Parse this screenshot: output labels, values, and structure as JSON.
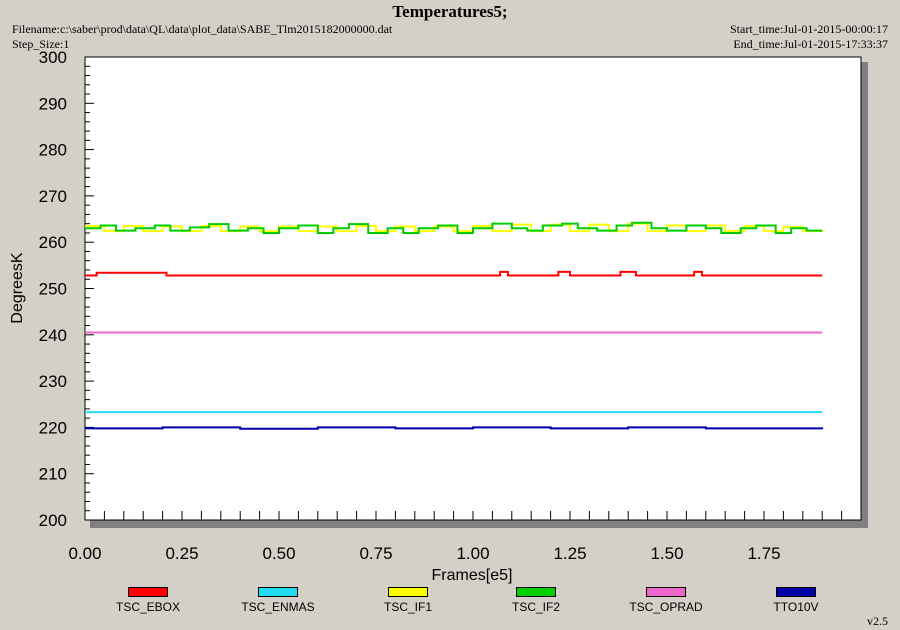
{
  "header": {
    "title": "Temperatures5;",
    "filename": "Filename:c:\\saber\\prod\\data\\QL\\data\\plot_data\\SABE_Tlm2015182000000.dat",
    "step_size": "Step_Size:1",
    "start_time": "Start_time:Jul-01-2015-00:00:17",
    "end_time": "End_time:Jul-01-2015-17:33:37"
  },
  "footer": {
    "version": "v2.5"
  },
  "chart_data": {
    "type": "line",
    "title": "Temperatures5;",
    "xlabel": "Frames[e5]",
    "ylabel": "DegreesK",
    "xlim": [
      0,
      2.0
    ],
    "ylim": [
      200,
      300
    ],
    "xticks": [
      "0.00",
      "0.25",
      "0.50",
      "0.75",
      "1.00",
      "1.25",
      "1.50",
      "1.75"
    ],
    "yticks": [
      "200",
      "210",
      "220",
      "230",
      "240",
      "250",
      "260",
      "270",
      "280",
      "290",
      "300"
    ],
    "grid": false,
    "legend_position": "bottom",
    "series": [
      {
        "name": "TSC_EBOX",
        "color": "#ff0000",
        "x": [
          0.0,
          0.03,
          0.19,
          0.21,
          1.07,
          1.09,
          1.22,
          1.25,
          1.38,
          1.42,
          1.57,
          1.59,
          1.9
        ],
        "y": [
          252.8,
          253.4,
          253.4,
          252.8,
          253.6,
          252.8,
          253.6,
          252.8,
          253.6,
          252.8,
          253.6,
          252.8,
          252.8
        ]
      },
      {
        "name": "TSC_ENMAS",
        "color": "#22ddf2",
        "x": [
          0.0,
          1.9
        ],
        "y": [
          223.3,
          223.3
        ]
      },
      {
        "name": "TSC_IF1",
        "color": "#ffff00",
        "x": [
          0.0,
          0.05,
          0.1,
          0.15,
          0.2,
          0.25,
          0.3,
          0.35,
          0.4,
          0.45,
          0.5,
          0.55,
          0.6,
          0.65,
          0.7,
          0.75,
          0.8,
          0.85,
          0.9,
          0.95,
          1.0,
          1.05,
          1.1,
          1.15,
          1.2,
          1.25,
          1.3,
          1.35,
          1.4,
          1.45,
          1.5,
          1.55,
          1.6,
          1.65,
          1.7,
          1.75,
          1.8,
          1.85,
          1.9
        ],
        "y": [
          263.5,
          262.4,
          263.5,
          262.4,
          263.4,
          262.4,
          263.5,
          262.4,
          263.4,
          262.4,
          263.4,
          262.4,
          263.4,
          262.4,
          263.5,
          262.4,
          263.4,
          262.4,
          263.4,
          262.4,
          263.5,
          262.4,
          263.8,
          262.4,
          263.8,
          262.4,
          263.8,
          262.4,
          264.0,
          262.4,
          263.6,
          262.4,
          263.6,
          262.4,
          263.5,
          262.4,
          263.3,
          262.4,
          262.6
        ]
      },
      {
        "name": "TSC_IF2",
        "color": "#00cc00",
        "x": [
          0.0,
          0.04,
          0.08,
          0.13,
          0.18,
          0.22,
          0.27,
          0.32,
          0.37,
          0.42,
          0.46,
          0.5,
          0.55,
          0.6,
          0.64,
          0.68,
          0.73,
          0.78,
          0.82,
          0.86,
          0.91,
          0.96,
          1.0,
          1.05,
          1.1,
          1.14,
          1.18,
          1.23,
          1.27,
          1.32,
          1.37,
          1.41,
          1.46,
          1.5,
          1.55,
          1.6,
          1.64,
          1.69,
          1.73,
          1.78,
          1.82,
          1.86,
          1.9
        ],
        "y": [
          263.0,
          263.6,
          262.5,
          263.0,
          263.6,
          262.5,
          263.2,
          263.9,
          262.5,
          263.0,
          262.0,
          263.0,
          263.6,
          262.0,
          263.0,
          263.9,
          262.0,
          263.0,
          262.0,
          263.0,
          263.6,
          262.0,
          263.0,
          264.0,
          263.0,
          262.5,
          263.6,
          264.0,
          263.0,
          262.5,
          263.6,
          264.2,
          263.0,
          262.5,
          263.6,
          263.0,
          262.0,
          263.0,
          263.6,
          262.0,
          263.0,
          262.5,
          262.5
        ]
      },
      {
        "name": "TSC_OPRAD",
        "color": "#ee66cc",
        "x": [
          0.0,
          1.9
        ],
        "y": [
          240.5,
          240.5
        ]
      },
      {
        "name": "TTO10V",
        "color": "#0000aa",
        "x": [
          0.0,
          0.2,
          0.4,
          0.6,
          0.8,
          1.0,
          1.2,
          1.4,
          1.6,
          1.9
        ],
        "y": [
          219.8,
          220.0,
          219.7,
          220.0,
          219.8,
          220.0,
          219.8,
          220.0,
          219.8,
          219.6
        ]
      }
    ]
  }
}
